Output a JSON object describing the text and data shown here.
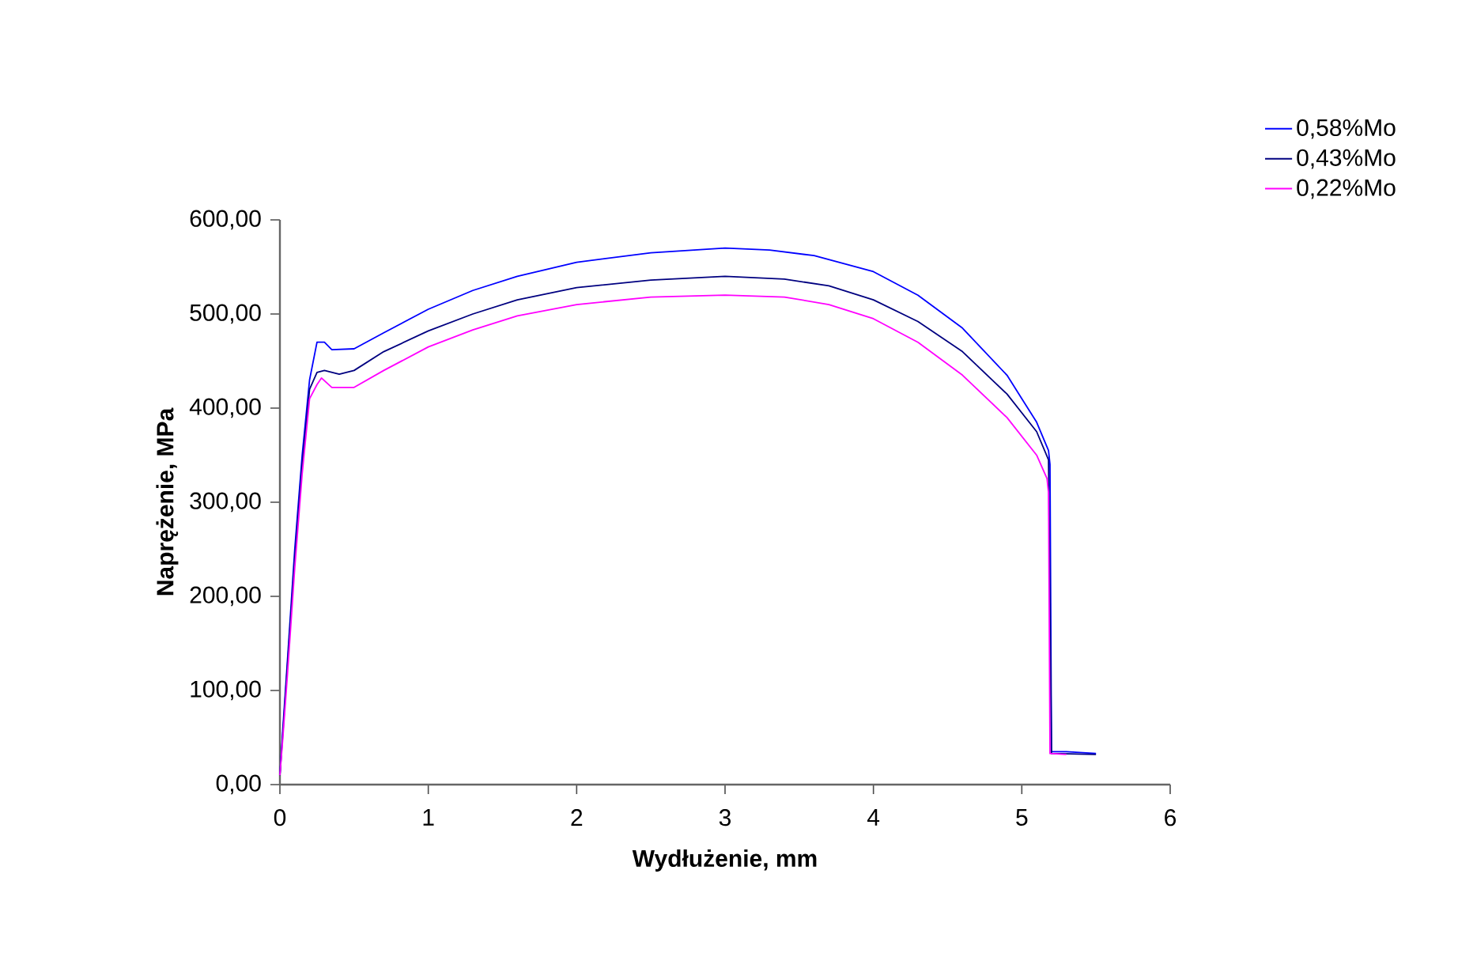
{
  "chart_data": {
    "type": "line",
    "xlabel": "Wydłużenie, mm",
    "ylabel": "Naprężenie, MPa",
    "legend": "top right",
    "xlim": [
      0,
      6
    ],
    "xticks": [
      0,
      1,
      2,
      3,
      4,
      5,
      6
    ],
    "ylim": [
      0,
      600
    ],
    "yticks": [
      {
        "value": 0,
        "label": "0,00"
      },
      {
        "value": 100,
        "label": "100,00"
      },
      {
        "value": 200,
        "label": "200,00"
      },
      {
        "value": 300,
        "label": "300,00"
      },
      {
        "value": 400,
        "label": "400,00"
      },
      {
        "value": 500,
        "label": "500,00"
      },
      {
        "value": 600,
        "label": "600,00"
      }
    ],
    "series": [
      {
        "name": "0,58%Mo",
        "color": "#0000ff",
        "x": [
          0,
          0.02,
          0.05,
          0.1,
          0.15,
          0.2,
          0.25,
          0.3,
          0.35,
          0.5,
          0.7,
          1,
          1.3,
          1.6,
          2,
          2.5,
          3,
          3.3,
          3.6,
          4,
          4.3,
          4.6,
          4.9,
          5.1,
          5.18,
          5.19,
          5.2,
          5.3,
          5.5
        ],
        "values": [
          10,
          60,
          130,
          250,
          350,
          430,
          470,
          470,
          462,
          463,
          480,
          505,
          525,
          540,
          555,
          565,
          570,
          568,
          562,
          545,
          520,
          485,
          435,
          385,
          355,
          340,
          35,
          35,
          33
        ]
      },
      {
        "name": "0,43%Mo",
        "color": "#000080",
        "x": [
          0,
          0.02,
          0.05,
          0.1,
          0.15,
          0.2,
          0.25,
          0.3,
          0.4,
          0.5,
          0.7,
          1,
          1.3,
          1.6,
          2,
          2.5,
          3,
          3.4,
          3.7,
          4,
          4.3,
          4.6,
          4.9,
          5.1,
          5.18,
          5.2,
          5.5
        ],
        "values": [
          10,
          55,
          125,
          240,
          340,
          420,
          438,
          440,
          436,
          440,
          460,
          482,
          500,
          515,
          528,
          536,
          540,
          537,
          530,
          515,
          492,
          460,
          415,
          375,
          345,
          33,
          32
        ]
      },
      {
        "name": "0,22%Mo",
        "color": "#ff00ff",
        "x": [
          0,
          0.02,
          0.05,
          0.1,
          0.15,
          0.2,
          0.25,
          0.28,
          0.35,
          0.5,
          0.7,
          1,
          1.3,
          1.6,
          2,
          2.5,
          3,
          3.4,
          3.7,
          4,
          4.3,
          4.6,
          4.9,
          5.1,
          5.17,
          5.18,
          5.19,
          5.3
        ],
        "values": [
          10,
          50,
          115,
          230,
          330,
          410,
          425,
          432,
          422,
          422,
          440,
          465,
          483,
          498,
          510,
          518,
          520,
          518,
          510,
          495,
          470,
          435,
          390,
          350,
          325,
          310,
          33,
          32
        ]
      }
    ]
  }
}
